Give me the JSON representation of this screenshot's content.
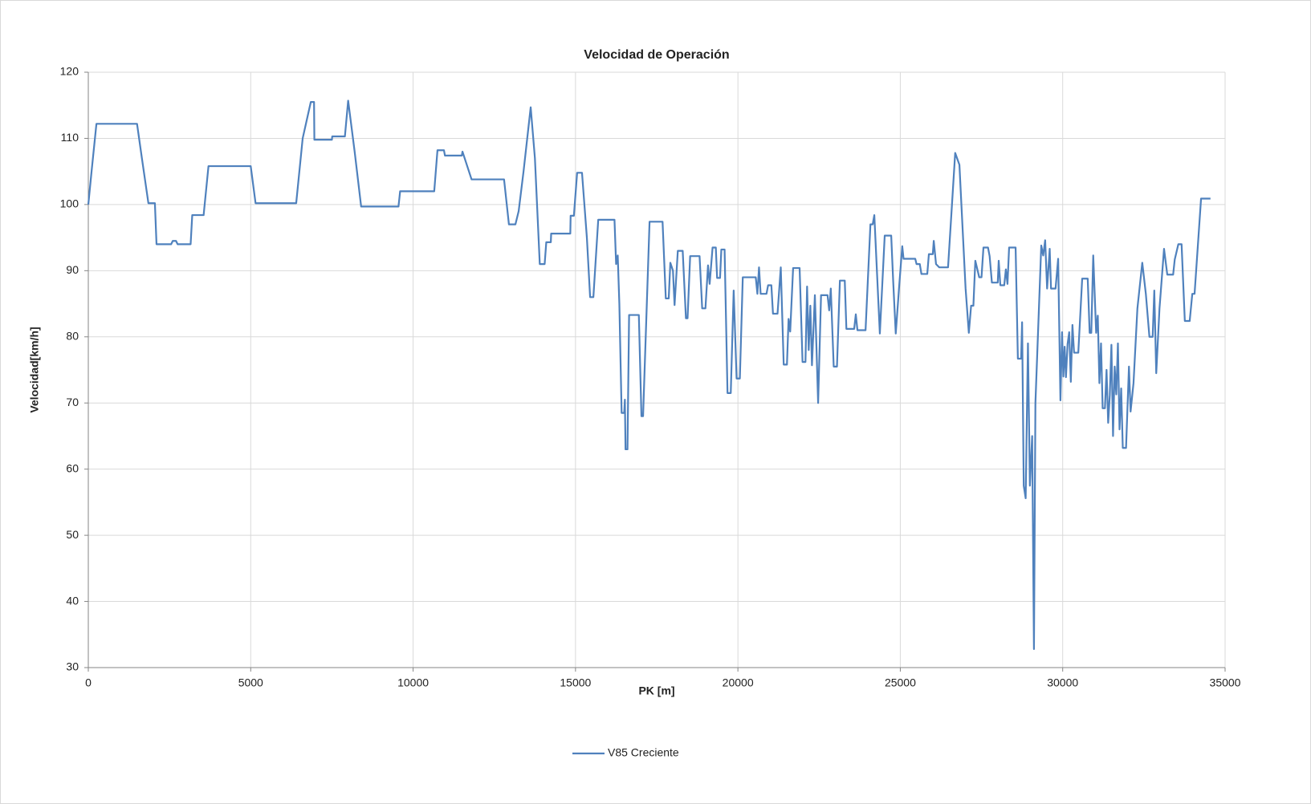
{
  "chart_data": {
    "type": "line",
    "title": "Velocidad de Operación",
    "x_label": "PK [m]",
    "y_label": "Velocidad[km/h]",
    "x": [
      0,
      100,
      250,
      1500,
      1650,
      1850,
      2050,
      2100,
      2550,
      2600,
      2700,
      2750,
      3150,
      3200,
      3550,
      3700,
      5000,
      5150,
      6400,
      6600,
      6850,
      6950,
      6960,
      7500,
      7510,
      7900,
      8000,
      8200,
      8400,
      9550,
      9600,
      10650,
      10750,
      10950,
      10980,
      11500,
      11520,
      11800,
      12800,
      12950,
      13150,
      13250,
      13400,
      13620,
      13750,
      13900,
      14050,
      14100,
      14240,
      14250,
      14840,
      14850,
      14950,
      15050,
      15200,
      15350,
      15450,
      15550,
      15700,
      16200,
      16250,
      16300,
      16350,
      16420,
      16500,
      16520,
      16540,
      16600,
      16650,
      16950,
      17030,
      17080,
      17280,
      17680,
      17780,
      17870,
      17920,
      18000,
      18050,
      18150,
      18300,
      18400,
      18450,
      18530,
      18820,
      18900,
      19000,
      19080,
      19130,
      19220,
      19320,
      19360,
      19450,
      19490,
      19590,
      19680,
      19780,
      19870,
      19960,
      20060,
      20150,
      20550,
      20600,
      20650,
      20700,
      20880,
      20930,
      21030,
      21080,
      21220,
      21320,
      21410,
      21510,
      21560,
      21610,
      21700,
      21900,
      21990,
      22080,
      22130,
      22180,
      22230,
      22280,
      22370,
      22470,
      22560,
      22760,
      22810,
      22860,
      22950,
      23050,
      23140,
      23290,
      23340,
      23580,
      23630,
      23680,
      23930,
      24080,
      24150,
      24200,
      24370,
      24520,
      24720,
      24780,
      24860,
      24960,
      25060,
      25100,
      25460,
      25500,
      25600,
      25650,
      25830,
      25880,
      26000,
      26030,
      26100,
      26200,
      26470,
      26690,
      26820,
      27010,
      27110,
      27180,
      27250,
      27310,
      27430,
      27500,
      27560,
      27700,
      27750,
      27820,
      28000,
      28030,
      28080,
      28200,
      28250,
      28300,
      28350,
      28550,
      28620,
      28720,
      28750,
      28800,
      28860,
      28930,
      28990,
      29060,
      29115,
      29160,
      29340,
      29400,
      29460,
      29520,
      29600,
      29640,
      29780,
      29860,
      29930,
      29980,
      30020,
      30060,
      30100,
      30150,
      30200,
      30250,
      30300,
      30350,
      30480,
      30600,
      30770,
      30830,
      30880,
      30940,
      31030,
      31080,
      31130,
      31180,
      31230,
      31300,
      31350,
      31400,
      31450,
      31500,
      31550,
      31600,
      31650,
      31700,
      31750,
      31800,
      31850,
      31950,
      32040,
      32090,
      32180,
      32300,
      32450,
      32560,
      32670,
      32770,
      32820,
      32880,
      32980,
      33120,
      33220,
      33400,
      33450,
      33560,
      33660,
      33760,
      33910,
      33990,
      34060,
      34260,
      34550
    ],
    "series": [
      {
        "name": "V85 Creciente",
        "color": "#4f81bd",
        "values": [
          100,
          105,
          112.2,
          112.2,
          107,
          100.2,
          100.2,
          94,
          94,
          94.5,
          94.5,
          94,
          94,
          98.4,
          98.4,
          105.8,
          105.8,
          100.2,
          100.2,
          110,
          115.5,
          115.5,
          109.8,
          109.8,
          110.3,
          110.3,
          115.7,
          108,
          99.7,
          99.7,
          102,
          102,
          108.2,
          108.2,
          107.4,
          107.4,
          108,
          103.8,
          103.8,
          97,
          97,
          99,
          105,
          114.7,
          107,
          91,
          91,
          94.3,
          94.3,
          95.6,
          95.6,
          98.3,
          98.3,
          104.8,
          104.8,
          95,
          86,
          86,
          97.7,
          97.7,
          91,
          92.3,
          85,
          68.5,
          68.5,
          70.5,
          63,
          63,
          83.3,
          83.3,
          68,
          68,
          97.4,
          97.4,
          85.8,
          85.8,
          91.2,
          90,
          84.8,
          93,
          93,
          82.8,
          82.8,
          92.2,
          92.2,
          84.3,
          84.3,
          90.8,
          88,
          93.5,
          93.5,
          88.9,
          88.9,
          93.2,
          93.2,
          71.5,
          71.5,
          87,
          73.7,
          73.7,
          89,
          89,
          86.5,
          90.5,
          86.5,
          86.5,
          87.8,
          87.8,
          83.5,
          83.5,
          90.5,
          75.8,
          75.8,
          82.7,
          80.8,
          90.4,
          90.4,
          76.2,
          76.2,
          87.6,
          78,
          84.7,
          75.7,
          86.3,
          70,
          86.3,
          86.3,
          84,
          87.3,
          75.5,
          75.5,
          88.5,
          88.5,
          81.2,
          81.2,
          83.4,
          81,
          81,
          97,
          97,
          98.4,
          80.5,
          95.3,
          95.3,
          88.5,
          80.5,
          87.3,
          93.7,
          91.8,
          91.8,
          91,
          91,
          89.5,
          89.5,
          92.5,
          92.5,
          94.5,
          91,
          90.5,
          90.5,
          107.8,
          106,
          87.3,
          80.6,
          84.7,
          84.7,
          91.5,
          89,
          89,
          93.5,
          93.5,
          92.2,
          88.2,
          88.2,
          91.5,
          87.8,
          87.8,
          90.2,
          88,
          93.5,
          93.5,
          76.7,
          76.7,
          82.2,
          57.5,
          55.6,
          79,
          57.5,
          65,
          32.8,
          70,
          93.8,
          92.3,
          94.6,
          87.3,
          93.3,
          87.3,
          87.3,
          91.8,
          70.4,
          80.7,
          74,
          78.5,
          73.9,
          78.9,
          80.7,
          73.2,
          81.8,
          77.6,
          77.6,
          88.8,
          88.8,
          80.6,
          80.6,
          92.3,
          80.6,
          83.2,
          73,
          79,
          69.2,
          69.2,
          75,
          67,
          71.2,
          78.8,
          65,
          75.5,
          71.3,
          79,
          66,
          72.2,
          63.2,
          63.2,
          75.5,
          68.7,
          73,
          84.3,
          91.2,
          86.5,
          80,
          80,
          87,
          74.5,
          84.3,
          93.3,
          89.4,
          89.4,
          91.7,
          94,
          94,
          82.4,
          82.4,
          86.5,
          86.5,
          100.9,
          100.9
        ]
      }
    ],
    "xlim": [
      0,
      35000
    ],
    "xticks": [
      0,
      5000,
      10000,
      15000,
      20000,
      25000,
      30000,
      35000
    ],
    "ylim": [
      30,
      120
    ],
    "yticks": [
      30,
      40,
      50,
      60,
      70,
      80,
      90,
      100,
      110,
      120
    ],
    "grid": true,
    "legend": "bottom"
  }
}
